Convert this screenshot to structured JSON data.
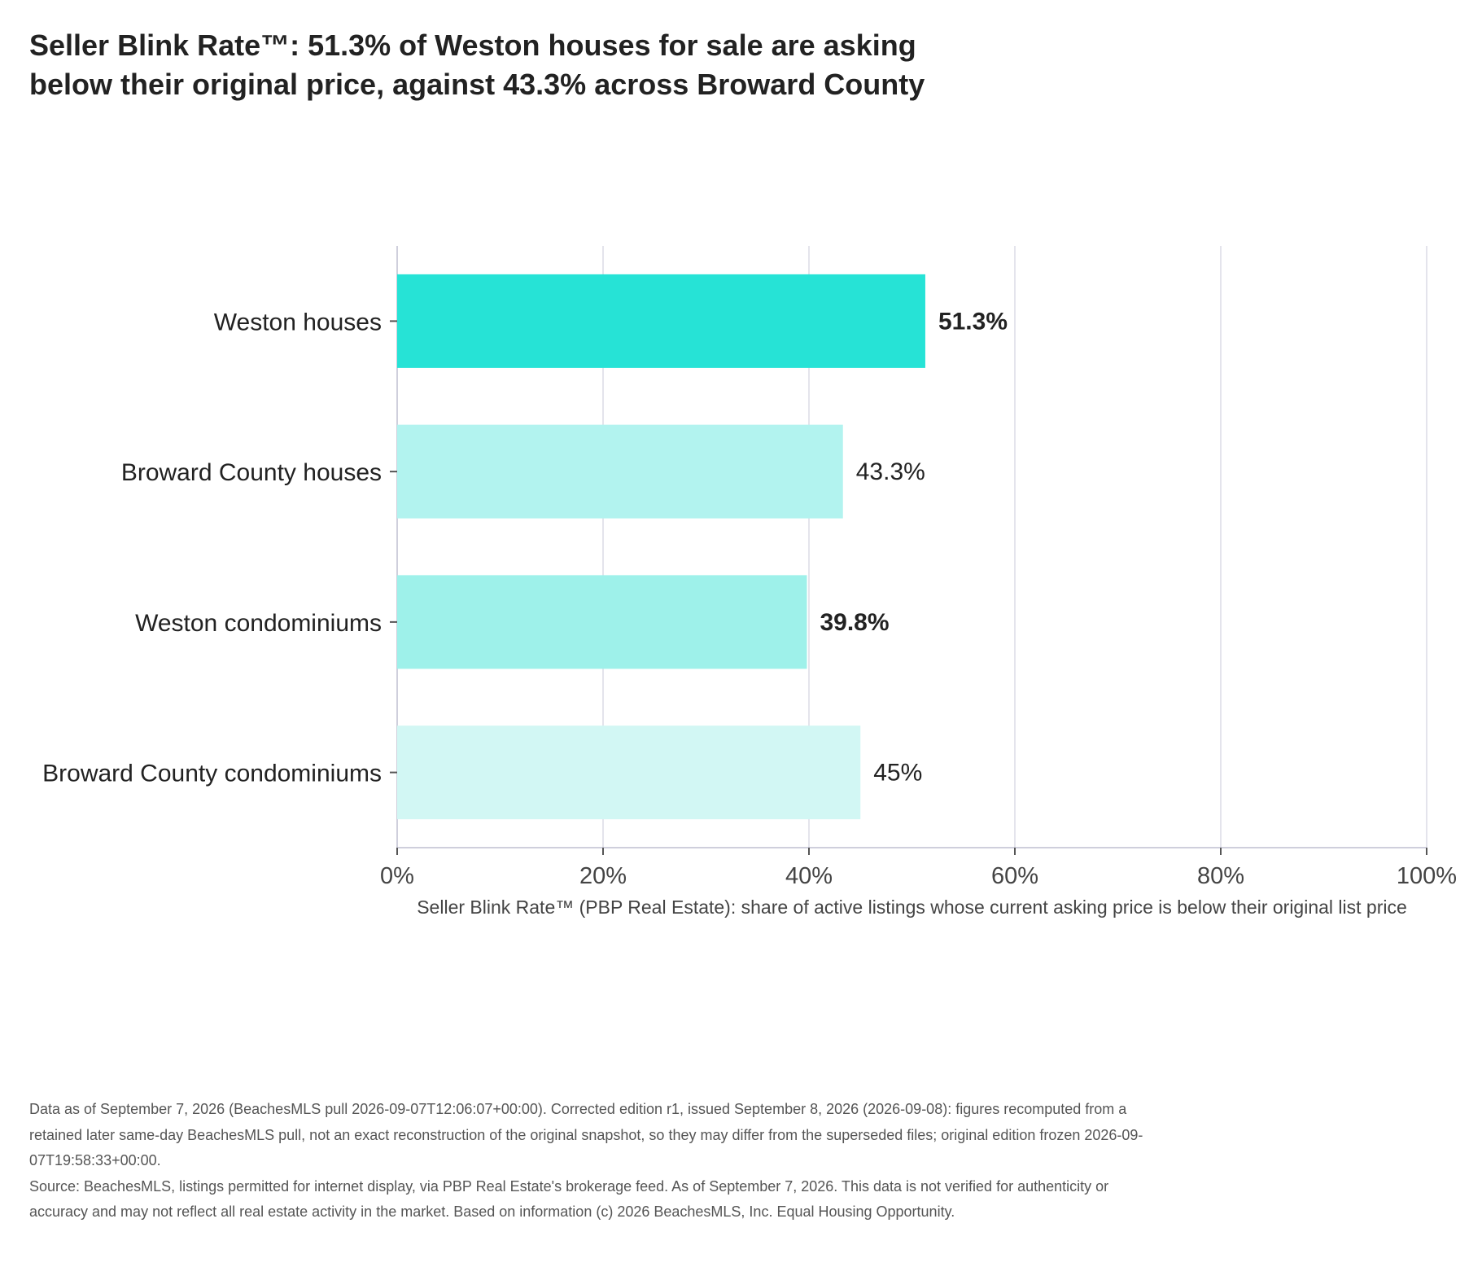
{
  "title_lines": [
    "Seller Blink Rate™: 51.3% of Weston houses for sale are asking",
    "below their original price, against 43.3% across Broward County"
  ],
  "chart_data": {
    "type": "bar",
    "orientation": "horizontal",
    "categories": [
      "Weston houses",
      "Broward County houses",
      "Weston condominiums",
      "Broward County condominiums"
    ],
    "values": [
      51.3,
      43.3,
      39.8,
      45
    ],
    "value_labels": [
      "51.3%",
      "43.3%",
      "39.8%",
      "45%"
    ],
    "bold_labels": [
      true,
      false,
      true,
      false
    ],
    "colors": [
      "#26e3d6",
      "#b2f3ef",
      "#9ef1ea",
      "#d2f7f4"
    ],
    "xlim": [
      0,
      100
    ],
    "xticks": [
      0,
      20,
      40,
      60,
      80,
      100
    ],
    "xtick_labels": [
      "0%",
      "20%",
      "40%",
      "60%",
      "80%",
      "100%"
    ],
    "xlabel": "Seller Blink Rate™ (PBP Real Estate): share of active listings whose current asking price is below their original list price",
    "grid": true
  },
  "footnotes": [
    "Data as of September 7, 2026 (BeachesMLS pull 2026-09-07T12:06:07+00:00). Corrected edition r1, issued September 8, 2026 (2026-09-08): figures recomputed from a retained later same-day BeachesMLS pull, not an exact reconstruction of the original snapshot, so they may differ from the superseded files; original edition frozen 2026-09-07T19:58:33+00:00.",
    "Source: BeachesMLS, listings permitted for internet display, via PBP Real Estate's brokerage feed. As of September 7, 2026. This data is not verified for authenticity or accuracy and may not reflect all real estate activity in the market. Based on information (c) 2026 BeachesMLS, Inc. Equal Housing Opportunity."
  ]
}
